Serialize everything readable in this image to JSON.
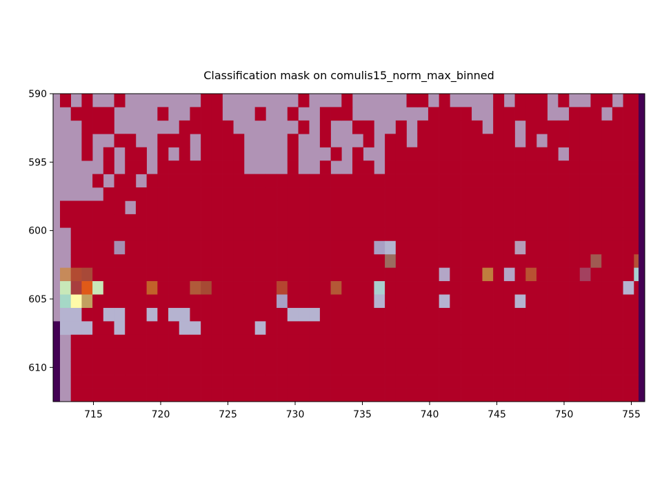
{
  "chart_data": {
    "type": "heatmap",
    "title": "Classification mask on comulis15_norm_max_binned",
    "xlabel": "",
    "ylabel": "",
    "xlim": [
      712,
      756
    ],
    "ylim": [
      612.5,
      590
    ],
    "x_ticks": [
      715,
      720,
      725,
      730,
      735,
      740,
      745,
      750,
      755
    ],
    "y_ticks": [
      590,
      595,
      600,
      605,
      610
    ],
    "grid": false,
    "colors": {
      "mask_background": "#b093b5",
      "mask_foreground": "#b10026",
      "edge_column": "#440154",
      "frame": "#000000"
    },
    "red_rows": [
      [
        0,
        2,
        5,
        13,
        14,
        22,
        26,
        32,
        33,
        35,
        40,
        42,
        43,
        44,
        46,
        49,
        50,
        52,
        53
      ],
      [
        1,
        2,
        3,
        4,
        9,
        12,
        13,
        14,
        18,
        21,
        24,
        25,
        26,
        34,
        35,
        36,
        37,
        40,
        41,
        42,
        43,
        44,
        47,
        48,
        49,
        51,
        52,
        53
      ],
      [
        2,
        3,
        4,
        11,
        12,
        13,
        14,
        15,
        22,
        24,
        27,
        28,
        31,
        33,
        34,
        35,
        36,
        37,
        38,
        40,
        41,
        43,
        44,
        45,
        46,
        47,
        48,
        49,
        50,
        51,
        52,
        53
      ],
      [
        2,
        5,
        6,
        9,
        10,
        11,
        13,
        14,
        15,
        16,
        21,
        24,
        28,
        30,
        31,
        33,
        34,
        35,
        36,
        37,
        38,
        39,
        40,
        41,
        43,
        45,
        46,
        47,
        48,
        49,
        50,
        51,
        52,
        53
      ],
      [
        2,
        4,
        6,
        7,
        9,
        11,
        13,
        14,
        15,
        16,
        21,
        25,
        27,
        30,
        31,
        32,
        33,
        34,
        35,
        36,
        37,
        38,
        39,
        40,
        41,
        42,
        43,
        44,
        45,
        47,
        48,
        49,
        50,
        51,
        52,
        53
      ],
      [
        4,
        6,
        7,
        9,
        10,
        11,
        12,
        13,
        14,
        15,
        16,
        21,
        24,
        27,
        28,
        30,
        31,
        32,
        33,
        34,
        35,
        36,
        37,
        38,
        39,
        40,
        41,
        42,
        43,
        44,
        45,
        46,
        47,
        48,
        49,
        50,
        51,
        52,
        53
      ],
      [
        3,
        5,
        6,
        8,
        9,
        10,
        11,
        12,
        13,
        14,
        15,
        16,
        17,
        18,
        19,
        20,
        21,
        22,
        23,
        24,
        25,
        26,
        27,
        28,
        29,
        30,
        31,
        32,
        33,
        34,
        35,
        36,
        37,
        38,
        39,
        40,
        41,
        42,
        43,
        44,
        45,
        46,
        47,
        48,
        49,
        50,
        51,
        52,
        53
      ],
      [
        4,
        5,
        6,
        7,
        8,
        9,
        10,
        11,
        12,
        13,
        14,
        15,
        16,
        17,
        18,
        19,
        20,
        21,
        22,
        23,
        24,
        25,
        26,
        27,
        28,
        29,
        30,
        31,
        32,
        33,
        34,
        35,
        36,
        37,
        38,
        39,
        40,
        41,
        42,
        43,
        44,
        45,
        46,
        47,
        48,
        49,
        50,
        51,
        52,
        53
      ],
      [
        0,
        1,
        2,
        3,
        4,
        5,
        7,
        8,
        9,
        10,
        11,
        12,
        13,
        14,
        15,
        16,
        17,
        18,
        19,
        20,
        21,
        22,
        23,
        24,
        25,
        26,
        27,
        28,
        29,
        30,
        31,
        32,
        33,
        34,
        35,
        36,
        37,
        38,
        39,
        40,
        41,
        42,
        43,
        44,
        45,
        46,
        47,
        48,
        49,
        50,
        51,
        52,
        53
      ],
      [
        0,
        1,
        2,
        3,
        4,
        5,
        6,
        7,
        8,
        9,
        10,
        11,
        12,
        13,
        14,
        15,
        16,
        17,
        18,
        19,
        20,
        21,
        22,
        23,
        24,
        25,
        26,
        27,
        28,
        29,
        30,
        31,
        32,
        33,
        34,
        35,
        36,
        37,
        38,
        39,
        40,
        41,
        42,
        43,
        44,
        45,
        46,
        47,
        48,
        49,
        50,
        51,
        52,
        53
      ],
      [
        1,
        2,
        3,
        4,
        5,
        6,
        7,
        8,
        9,
        10,
        11,
        12,
        13,
        14,
        15,
        16,
        17,
        18,
        19,
        20,
        21,
        22,
        23,
        24,
        25,
        26,
        27,
        28,
        29,
        30,
        31,
        32,
        33,
        34,
        35,
        36,
        37,
        38,
        39,
        40,
        41,
        42,
        43,
        44,
        45,
        46,
        47,
        48,
        49,
        50,
        51,
        52,
        53
      ],
      [
        1,
        2,
        3,
        4,
        5,
        6,
        7,
        8,
        9,
        10,
        11,
        12,
        13,
        14,
        15,
        16,
        17,
        18,
        19,
        20,
        21,
        22,
        23,
        24,
        25,
        26,
        27,
        28,
        29,
        30,
        31,
        32,
        33,
        34,
        35,
        36,
        37,
        38,
        39,
        40,
        41,
        42,
        43,
        44,
        45,
        46,
        47,
        48,
        49,
        50,
        51,
        52,
        53
      ],
      [
        1,
        2,
        3,
        4,
        5,
        6,
        7,
        8,
        9,
        10,
        11,
        12,
        13,
        14,
        15,
        16,
        17,
        18,
        19,
        20,
        21,
        22,
        23,
        24,
        25,
        26,
        27,
        28,
        29,
        30,
        31,
        32,
        33,
        34,
        35,
        36,
        37,
        38,
        39,
        40,
        41,
        42,
        43,
        44,
        45,
        46,
        47,
        48,
        49,
        50,
        51,
        52,
        53
      ],
      [
        1,
        2,
        3,
        4,
        5,
        6,
        7,
        8,
        9,
        10,
        11,
        12,
        13,
        14,
        15,
        16,
        17,
        18,
        19,
        20,
        21,
        22,
        23,
        24,
        25,
        26,
        27,
        28,
        29,
        30,
        31,
        32,
        33,
        34,
        35,
        36,
        37,
        38,
        39,
        40,
        41,
        42,
        43,
        44,
        45,
        46,
        47,
        48,
        49,
        50,
        51,
        52,
        53
      ],
      [
        1,
        2,
        3,
        4,
        5,
        6,
        7,
        8,
        9,
        10,
        11,
        12,
        13,
        14,
        15,
        16,
        17,
        18,
        19,
        20,
        21,
        22,
        23,
        24,
        25,
        26,
        27,
        28,
        29,
        30,
        31,
        32,
        33,
        34,
        35,
        36,
        37,
        38,
        39,
        40,
        41,
        42,
        43,
        44,
        45,
        46,
        47,
        48,
        49,
        50,
        51,
        52,
        53
      ],
      [
        1,
        2,
        3,
        4,
        5,
        6,
        7,
        8,
        9,
        10,
        11,
        12,
        13,
        14,
        15,
        16,
        17,
        18,
        19,
        20,
        21,
        22,
        23,
        24,
        25,
        26,
        27,
        28,
        29,
        30,
        31,
        32,
        33,
        34,
        35,
        36,
        37,
        38,
        39,
        40,
        41,
        42,
        43,
        44,
        45,
        46,
        47,
        48,
        49,
        50,
        51,
        52,
        53
      ],
      [
        1,
        2,
        3,
        4,
        5,
        6,
        7,
        8,
        9,
        10,
        11,
        12,
        13,
        14,
        15,
        16,
        17,
        18,
        19,
        20,
        21,
        22,
        23,
        24,
        25,
        26,
        27,
        28,
        29,
        30,
        31,
        32,
        33,
        34,
        35,
        36,
        37,
        38,
        39,
        40,
        41,
        42,
        43,
        44,
        45,
        46,
        47,
        48,
        49,
        50,
        51,
        52,
        53
      ],
      [
        1,
        2,
        3,
        4,
        5,
        6,
        7,
        8,
        9,
        10,
        11,
        12,
        13,
        14,
        15,
        16,
        17,
        18,
        19,
        20,
        21,
        22,
        23,
        24,
        25,
        26,
        27,
        28,
        29,
        30,
        31,
        32,
        33,
        34,
        35,
        36,
        37,
        38,
        39,
        40,
        41,
        42,
        43,
        44,
        45,
        46,
        47,
        48,
        49,
        50,
        51,
        52,
        53
      ],
      [
        1,
        2,
        3,
        4,
        5,
        6,
        7,
        8,
        9,
        10,
        11,
        12,
        13,
        14,
        15,
        16,
        17,
        18,
        19,
        20,
        21,
        22,
        23,
        24,
        25,
        26,
        27,
        28,
        29,
        30,
        31,
        32,
        33,
        34,
        35,
        36,
        37,
        38,
        39,
        40,
        41,
        42,
        43,
        44,
        45,
        46,
        47,
        48,
        49,
        50,
        51,
        52,
        53
      ],
      [
        1,
        2,
        3,
        4,
        5,
        6,
        7,
        8,
        9,
        10,
        11,
        12,
        13,
        14,
        15,
        16,
        17,
        18,
        19,
        20,
        21,
        22,
        23,
        24,
        25,
        26,
        27,
        28,
        29,
        30,
        31,
        32,
        33,
        34,
        35,
        36,
        37,
        38,
        39,
        40,
        41,
        42,
        43,
        44,
        45,
        46,
        47,
        48,
        49,
        50,
        51,
        52,
        53
      ],
      [
        1,
        2,
        3,
        4,
        5,
        6,
        7,
        8,
        9,
        10,
        11,
        12,
        13,
        14,
        15,
        16,
        17,
        18,
        19,
        20,
        21,
        22,
        23,
        24,
        25,
        26,
        27,
        28,
        29,
        30,
        31,
        32,
        33,
        34,
        35,
        36,
        37,
        38,
        39,
        40,
        41,
        42,
        43,
        44,
        45,
        46,
        47,
        48,
        49,
        50,
        51,
        52,
        53
      ],
      [
        1,
        2,
        3,
        4,
        5,
        6,
        7,
        8,
        9,
        10,
        11,
        12,
        13,
        14,
        15,
        16,
        17,
        18,
        19,
        20,
        21,
        22,
        23,
        24,
        25,
        26,
        27,
        28,
        29,
        30,
        31,
        32,
        33,
        34,
        35,
        36,
        37,
        38,
        39,
        40,
        41,
        42,
        43,
        44,
        45,
        46,
        47,
        48,
        49,
        50,
        51,
        52,
        53
      ],
      [
        1,
        2,
        3,
        4,
        5,
        6,
        7,
        8,
        9,
        10,
        11,
        12,
        13,
        14,
        15,
        16,
        17,
        18,
        19,
        20,
        21,
        22,
        23,
        24,
        25,
        26,
        27,
        28,
        29,
        30,
        31,
        32,
        33,
        34,
        35,
        36,
        37,
        38,
        39,
        40,
        41,
        42,
        43,
        44,
        45,
        46,
        47,
        48,
        49,
        50,
        51,
        52,
        53
      ]
    ],
    "overrides": [
      {
        "r": 11,
        "c": 5,
        "color": "#a58fb2"
      },
      {
        "r": 11,
        "c": 29,
        "color": "#a8a0c4"
      },
      {
        "r": 11,
        "c": 30,
        "color": "#b3b5d0"
      },
      {
        "r": 11,
        "c": 42,
        "color": "#b59db9"
      },
      {
        "r": 12,
        "c": 30,
        "color": "#9c6c60"
      },
      {
        "r": 12,
        "c": 49,
        "color": "#a05a52"
      },
      {
        "r": 12,
        "c": 53,
        "color": "#b45036"
      },
      {
        "r": 13,
        "c": 0,
        "color": "#c68a5a"
      },
      {
        "r": 13,
        "c": 1,
        "color": "#b24b32"
      },
      {
        "r": 13,
        "c": 2,
        "color": "#a84938"
      },
      {
        "r": 13,
        "c": 35,
        "color": "#b3a6c6"
      },
      {
        "r": 13,
        "c": 39,
        "color": "#c07d3e"
      },
      {
        "r": 13,
        "c": 41,
        "color": "#b3a6c6"
      },
      {
        "r": 13,
        "c": 43,
        "color": "#b95232"
      },
      {
        "r": 13,
        "c": 48,
        "color": "#a3415f"
      },
      {
        "r": 13,
        "c": 53,
        "color": "#a7d1d1"
      },
      {
        "r": 14,
        "c": 0,
        "color": "#c8e8b8"
      },
      {
        "r": 14,
        "c": 1,
        "color": "#a83e3e"
      },
      {
        "r": 14,
        "c": 2,
        "color": "#e05a18"
      },
      {
        "r": 14,
        "c": 3,
        "color": "#c8e8b8"
      },
      {
        "r": 14,
        "c": 8,
        "color": "#c2622a"
      },
      {
        "r": 14,
        "c": 12,
        "color": "#b05a3a"
      },
      {
        "r": 14,
        "c": 13,
        "color": "#a64a34"
      },
      {
        "r": 14,
        "c": 20,
        "color": "#b54530"
      },
      {
        "r": 14,
        "c": 25,
        "color": "#b45836"
      },
      {
        "r": 14,
        "c": 29,
        "color": "#a9cfcf"
      },
      {
        "r": 14,
        "c": 52,
        "color": "#b5b3d0"
      },
      {
        "r": 15,
        "c": 0,
        "color": "#a5d8c6"
      },
      {
        "r": 15,
        "c": 1,
        "color": "#fffaa8"
      },
      {
        "r": 15,
        "c": 2,
        "color": "#c2a060"
      },
      {
        "r": 15,
        "c": 20,
        "color": "#a8a0c4"
      },
      {
        "r": 15,
        "c": 29,
        "color": "#b5b3d0"
      },
      {
        "r": 15,
        "c": 35,
        "color": "#b5b3d0"
      },
      {
        "r": 15,
        "c": 42,
        "color": "#b5b3d0"
      },
      {
        "r": 16,
        "c": 0,
        "color": "#b5b3d0"
      },
      {
        "r": 16,
        "c": 1,
        "color": "#b5b3d0"
      },
      {
        "r": 16,
        "c": 4,
        "color": "#b5b3d0"
      },
      {
        "r": 16,
        "c": 5,
        "color": "#b5b3d0"
      },
      {
        "r": 16,
        "c": 8,
        "color": "#b5b3d0"
      },
      {
        "r": 16,
        "c": 10,
        "color": "#b5b3d0"
      },
      {
        "r": 16,
        "c": 11,
        "color": "#b5b3d0"
      },
      {
        "r": 16,
        "c": 21,
        "color": "#b5b3d0"
      },
      {
        "r": 16,
        "c": 22,
        "color": "#b5b3d0"
      },
      {
        "r": 16,
        "c": 23,
        "color": "#b5b3d0"
      },
      {
        "r": 17,
        "c": 0,
        "color": "#b5b3d0"
      },
      {
        "r": 17,
        "c": 1,
        "color": "#b5b3d0"
      },
      {
        "r": 17,
        "c": 2,
        "color": "#b5b3d0"
      },
      {
        "r": 17,
        "c": 5,
        "color": "#b5b3d0"
      },
      {
        "r": 17,
        "c": 11,
        "color": "#b5b3d0"
      },
      {
        "r": 17,
        "c": 12,
        "color": "#b5b3d0"
      },
      {
        "r": 17,
        "c": 18,
        "color": "#b5b3d0"
      }
    ]
  }
}
